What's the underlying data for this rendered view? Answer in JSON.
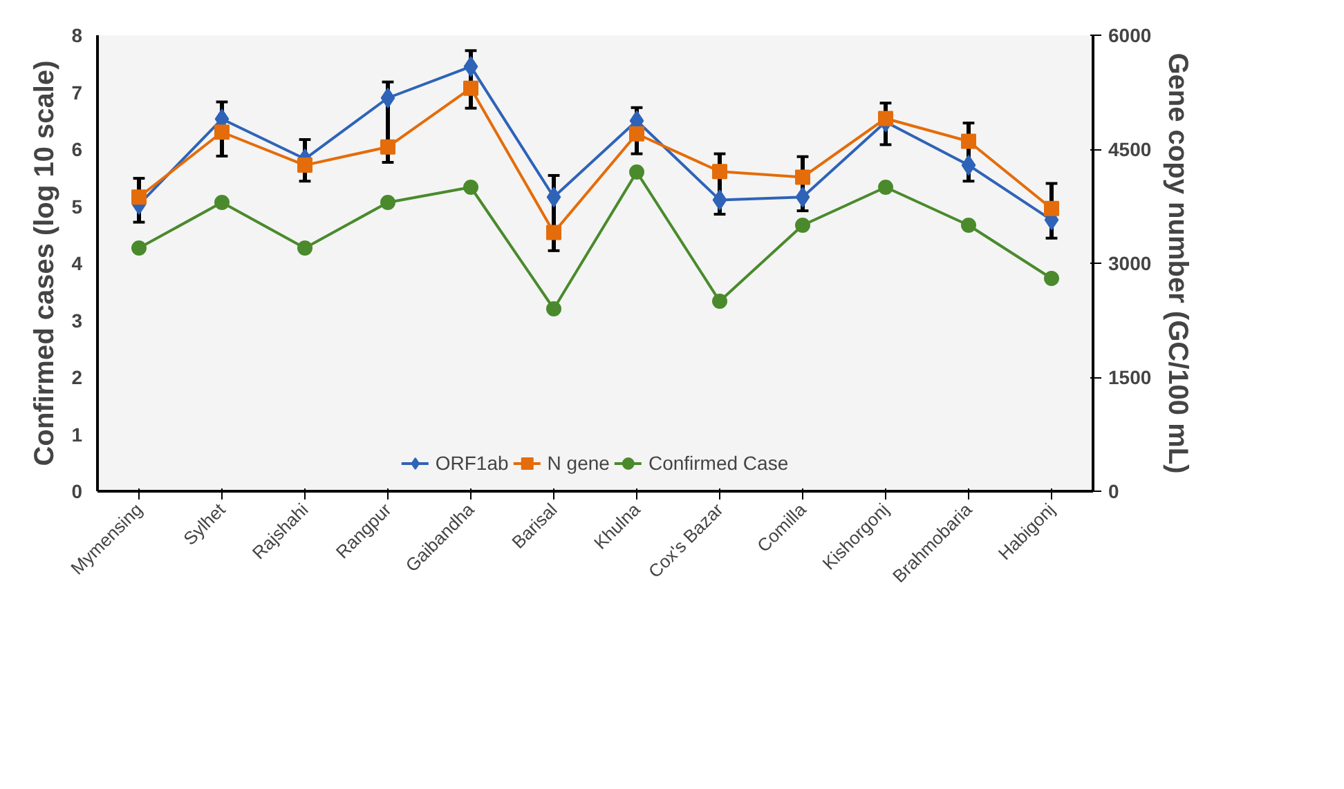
{
  "chart_data": {
    "type": "line",
    "ylabel": "Confirmed cases (log 10 scale)",
    "y2label": "Gene copy number (GC/100 mL)",
    "categories": [
      "Mymensing",
      "Sylhet",
      "Rajshahi",
      "Rangpur",
      "Gaibandha",
      "Barisal",
      "Khulna",
      "Cox's Bazar",
      "Comilla",
      "Kishorgonj",
      "Brahmobaria",
      "Habigonj"
    ],
    "ylim": [
      0,
      8
    ],
    "yticks": [
      0,
      1,
      2,
      3,
      4,
      5,
      6,
      7,
      8
    ],
    "y2lim": [
      0,
      6000
    ],
    "y2ticks": [
      0,
      1500,
      3000,
      4500,
      6000
    ],
    "grid": false,
    "legend": "bottom",
    "line_style": "solid",
    "series": [
      {
        "name": "ORF1ab",
        "color": "#2e63b8",
        "marker": "diamond",
        "values": [
          5.03,
          6.53,
          5.83,
          6.9,
          7.45,
          5.16,
          6.5,
          5.11,
          5.16,
          6.48,
          5.72,
          4.76
        ],
        "errors": [
          [
            4.72,
            5.49
          ],
          [
            5.88,
            6.83
          ],
          [
            5.44,
            6.17
          ],
          [
            5.77,
            7.18
          ],
          [
            6.72,
            7.73
          ],
          [
            4.22,
            5.54
          ],
          [
            5.92,
            6.73
          ],
          [
            4.86,
            5.92
          ],
          [
            4.92,
            5.87
          ],
          [
            6.08,
            6.81
          ],
          [
            5.44,
            6.46
          ],
          [
            4.44,
            5.4
          ]
        ]
      },
      {
        "name": "N gene",
        "color": "#e46c0a",
        "marker": "square",
        "values": [
          5.16,
          6.3,
          5.72,
          6.04,
          7.07,
          4.54,
          6.27,
          5.61,
          5.51,
          6.54,
          6.14,
          4.96
        ]
      },
      {
        "name": "Confirmed Case",
        "color": "#4a8a2c",
        "marker": "circle",
        "axis": "y2",
        "values": [
          3200,
          3800,
          3200,
          3800,
          4000,
          2400,
          4200,
          2500,
          3500,
          4000,
          3500,
          2800
        ]
      }
    ]
  }
}
